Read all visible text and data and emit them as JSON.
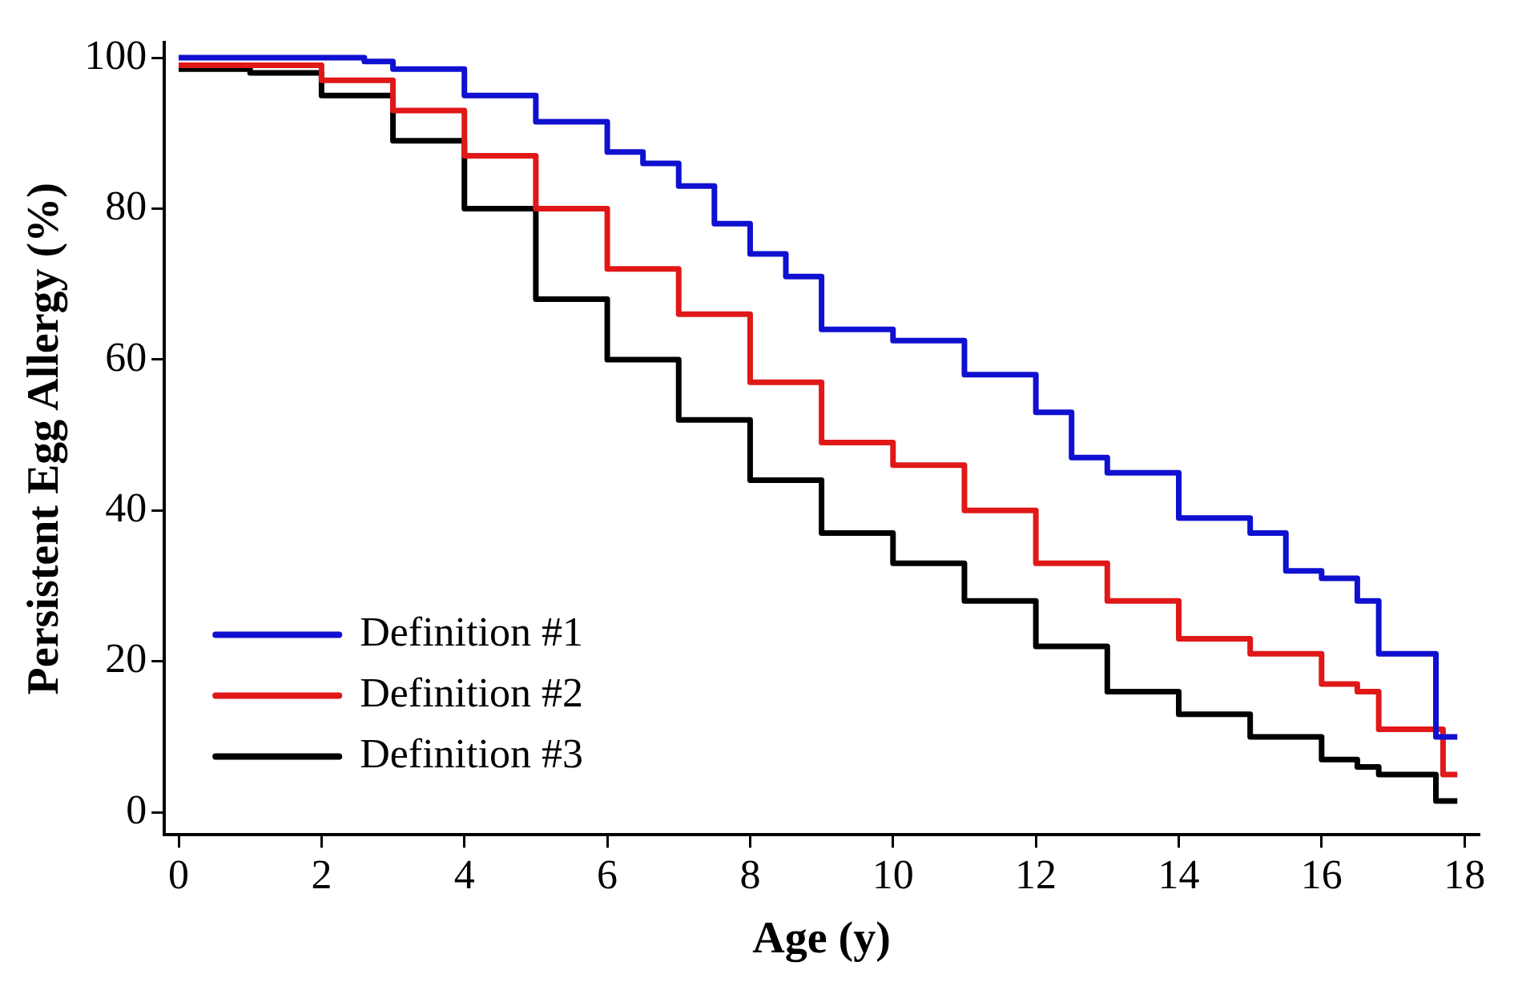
{
  "chart_data": {
    "type": "step",
    "xlabel": "Age (y)",
    "ylabel": "Persistent Egg Allergy (%)",
    "xlim": [
      -0.2,
      18.2
    ],
    "xticks": [
      0,
      2,
      4,
      6,
      8,
      10,
      12,
      14,
      16,
      18
    ],
    "ylim": [
      -3,
      102
    ],
    "yticks": [
      0,
      20,
      40,
      60,
      80,
      100
    ],
    "grid": false,
    "legend": "bottom left",
    "marker": "none",
    "line_style": "solid",
    "series": [
      {
        "name": "Definition #1",
        "color": "#1010d0",
        "x": [
          0,
          2,
          2.6,
          3,
          4,
          5,
          6,
          6.5,
          7,
          7.5,
          8,
          8.5,
          9,
          10,
          11,
          12,
          12.5,
          13,
          14,
          15,
          15.5,
          16,
          16.5,
          16.8,
          17.6,
          17.9
        ],
        "values": [
          100,
          100,
          99.5,
          98.5,
          95,
          91.5,
          87.5,
          86,
          83,
          78,
          74,
          71,
          64,
          62.5,
          58,
          53,
          47,
          45,
          39,
          37,
          32,
          31,
          28,
          21,
          10,
          10
        ]
      },
      {
        "name": "Definition #2",
        "color": "#e01818",
        "x": [
          0,
          1,
          2,
          3,
          4,
          5,
          6,
          7,
          8,
          9,
          10,
          11,
          12,
          13,
          14,
          15,
          16,
          16.5,
          16.8,
          17.7,
          17.9
        ],
        "values": [
          99,
          99,
          97,
          93,
          87,
          80,
          72,
          66,
          57,
          49,
          46,
          40,
          33,
          28,
          23,
          21,
          17,
          16,
          11,
          5,
          5
        ]
      },
      {
        "name": "Definition #3",
        "color": "#000000",
        "x": [
          0,
          1,
          2,
          3,
          4,
          5,
          6,
          7,
          8,
          9,
          10,
          11,
          12,
          13,
          14,
          15,
          16,
          16.5,
          16.8,
          17.6,
          17.9
        ],
        "values": [
          98.5,
          98,
          95,
          89,
          80,
          68,
          60,
          52,
          44,
          37,
          33,
          28,
          22,
          16,
          13,
          10,
          7,
          6,
          5,
          1.5,
          1.5
        ]
      }
    ]
  }
}
